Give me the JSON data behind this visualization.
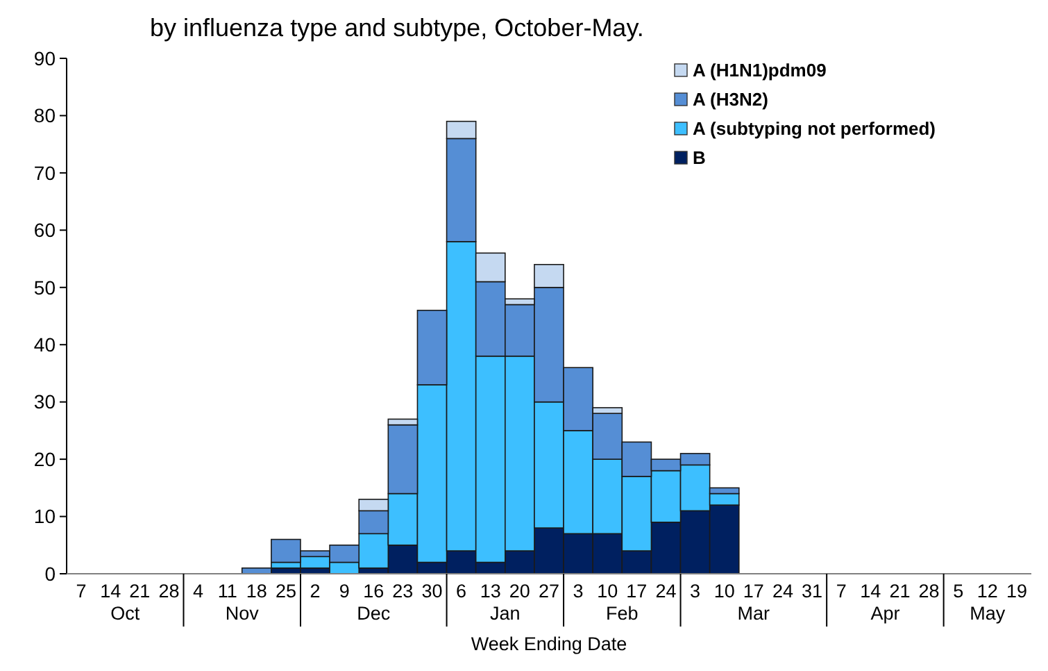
{
  "chart_data": {
    "type": "bar",
    "stacked": true,
    "title": "by influenza type and subtype, October-May.",
    "xlabel": "Week Ending Date",
    "categories": [
      "7",
      "14",
      "21",
      "28",
      "4",
      "11",
      "18",
      "25",
      "2",
      "9",
      "16",
      "23",
      "30",
      "6",
      "13",
      "20",
      "27",
      "3",
      "10",
      "17",
      "24",
      "3",
      "10",
      "17",
      "24",
      "31",
      "7",
      "14",
      "21",
      "28",
      "5",
      "12",
      "19"
    ],
    "annotations": [
      "Oct",
      "Nov",
      "Dec",
      "Jan",
      "Feb",
      "Mar",
      "Apr",
      "May"
    ],
    "series": [
      {
        "name": "B",
        "color": "#002060",
        "values": [
          0,
          0,
          0,
          0,
          0,
          0,
          0,
          1,
          1,
          0,
          1,
          5,
          2,
          4,
          2,
          4,
          8,
          7,
          7,
          4,
          9,
          11,
          12,
          0,
          0,
          0,
          0,
          0,
          0,
          0,
          0,
          0,
          0
        ]
      },
      {
        "name": "A (subtyping not performed)",
        "color": "#3dbfff",
        "values": [
          0,
          0,
          0,
          0,
          0,
          0,
          0,
          1,
          2,
          2,
          6,
          9,
          31,
          54,
          36,
          34,
          22,
          18,
          13,
          13,
          9,
          8,
          2,
          0,
          0,
          0,
          0,
          0,
          0,
          0,
          0,
          0,
          0
        ]
      },
      {
        "name": "A (H3N2)",
        "color": "#558ed5",
        "values": [
          0,
          0,
          0,
          0,
          0,
          0,
          1,
          4,
          1,
          3,
          4,
          12,
          13,
          18,
          13,
          9,
          20,
          11,
          8,
          6,
          2,
          2,
          1,
          0,
          0,
          0,
          0,
          0,
          0,
          0,
          0,
          0,
          0
        ]
      },
      {
        "name": "A (H1N1)pdm09",
        "color": "#c5d9f1",
        "values": [
          0,
          0,
          0,
          0,
          0,
          0,
          0,
          0,
          0,
          0,
          2,
          1,
          0,
          3,
          5,
          1,
          4,
          0,
          1,
          0,
          0,
          0,
          0,
          0,
          0,
          0,
          0,
          0,
          0,
          0,
          0,
          0,
          0
        ]
      }
    ],
    "ylim": [
      0,
      90
    ],
    "yticks": [
      0,
      10,
      20,
      30,
      40,
      50,
      60,
      70,
      80,
      90
    ],
    "legend": "top right",
    "grid": false
  }
}
